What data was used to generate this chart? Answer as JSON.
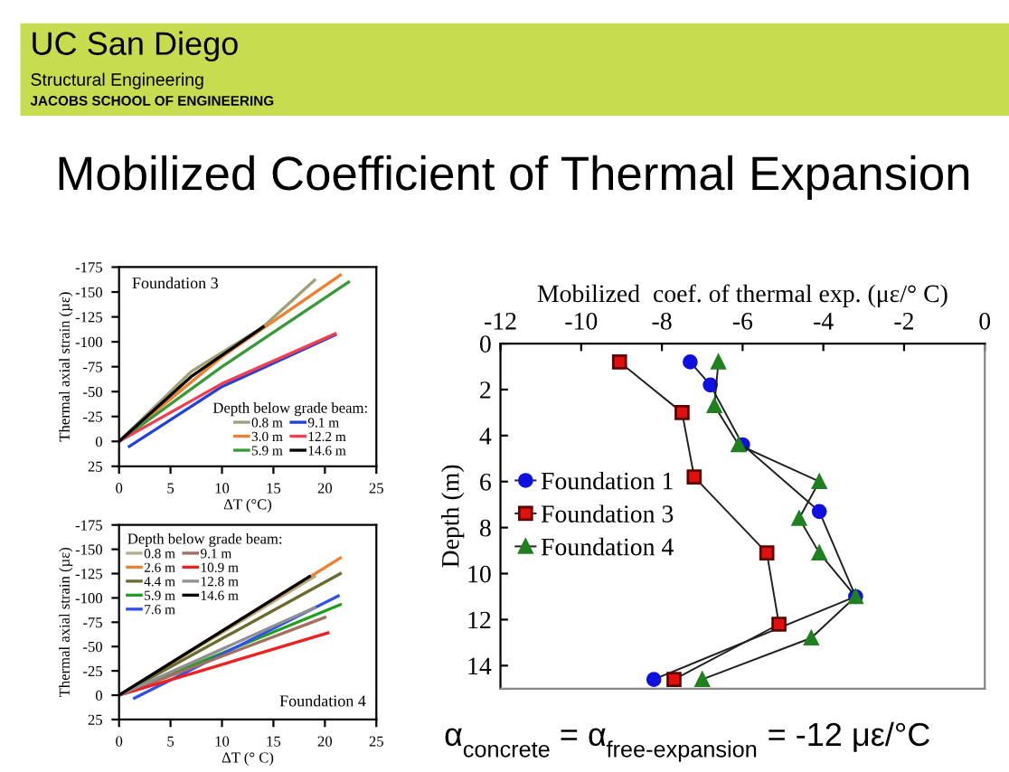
{
  "chart_data": [
    {
      "type": "other",
      "title": "Mobilized Coefficient of Thermal Expansion",
      "annotations": [
        "UC San Diego",
        "Structural Engineering",
        "JACOBS SCHOOL OF ENGINEERING"
      ]
    },
    {
      "type": "line",
      "xlabel": "ΔT (°C)",
      "ylabel": "Thermal axial strain (µε)",
      "legend_title": "Depth below grade beam:",
      "legend": "bottom right",
      "annotations": [
        "Foundation 3"
      ],
      "xlim": [
        0,
        25
      ],
      "xticks": [
        0,
        5,
        10,
        15,
        20,
        25
      ],
      "ylim": [
        25,
        -175
      ],
      "yticks": [
        25,
        0,
        -25,
        -50,
        -75,
        -100,
        -125,
        -150,
        -175
      ],
      "marker": "none",
      "line_style": "solid",
      "grid": false,
      "series": [
        {
          "name": "0.8 m",
          "color": "#a0a078",
          "x": [
            0,
            7,
            14,
            19
          ],
          "values": [
            0,
            -70,
            -115,
            -162
          ]
        },
        {
          "name": "3.0 m",
          "color": "#f08030",
          "x": [
            0,
            10,
            21.5
          ],
          "values": [
            0,
            -85,
            -167
          ]
        },
        {
          "name": "5.9 m",
          "color": "#3a9a3a",
          "x": [
            0,
            10,
            22.3
          ],
          "values": [
            0,
            -75,
            -160
          ]
        },
        {
          "name": "9.1 m",
          "color": "#2040e0",
          "x": [
            1,
            10,
            21
          ],
          "values": [
            5,
            -55,
            -107
          ]
        },
        {
          "name": "12.2 m",
          "color": "#f04050",
          "x": [
            0,
            10,
            21
          ],
          "values": [
            0,
            -58,
            -108
          ]
        },
        {
          "name": "14.6 m",
          "color": "#000000",
          "x": [
            0,
            7,
            14
          ],
          "values": [
            0,
            -65,
            -115
          ]
        }
      ]
    },
    {
      "type": "line",
      "xlabel": "ΔT (° C)",
      "ylabel": "Thermal axial strain (µε)",
      "legend_title": "Depth below grade beam:",
      "legend": "top left",
      "annotations": [
        "Foundation 4"
      ],
      "xlim": [
        0,
        25
      ],
      "xticks": [
        0,
        5,
        10,
        15,
        20,
        25
      ],
      "ylim": [
        25,
        -175
      ],
      "yticks": [
        25,
        0,
        -25,
        -50,
        -75,
        -100,
        -125,
        -150,
        -175
      ],
      "marker": "none",
      "line_style": "solid",
      "grid": false,
      "series": [
        {
          "name": "0.8 m",
          "color": "#b0b090",
          "x": [
            0,
            19
          ],
          "values": [
            0,
            -122
          ]
        },
        {
          "name": "2.6 m",
          "color": "#f08030",
          "x": [
            0,
            21.5
          ],
          "values": [
            0,
            -141
          ]
        },
        {
          "name": "4.4 m",
          "color": "#6b6b30",
          "x": [
            0,
            21.5
          ],
          "values": [
            0,
            -125
          ]
        },
        {
          "name": "5.9 m",
          "color": "#20a020",
          "x": [
            0,
            21.5
          ],
          "values": [
            0,
            -93
          ]
        },
        {
          "name": "7.6 m",
          "color": "#3050f0",
          "x": [
            1.5,
            21.3
          ],
          "values": [
            3,
            -102
          ]
        },
        {
          "name": "9.1 m",
          "color": "#a07060",
          "x": [
            0,
            20
          ],
          "values": [
            0,
            -80
          ]
        },
        {
          "name": "10.9 m",
          "color": "#f02020",
          "x": [
            0,
            20.3
          ],
          "values": [
            0,
            -64
          ]
        },
        {
          "name": "12.8 m",
          "color": "#909090",
          "x": [
            0,
            19
          ],
          "values": [
            0,
            -90
          ]
        },
        {
          "name": "14.6 m",
          "color": "#000000",
          "x": [
            0,
            18.5
          ],
          "values": [
            0,
            -122
          ]
        }
      ]
    },
    {
      "type": "line",
      "xlabel": "Mobilized  coef. of thermal exp. (με/° C)",
      "ylabel": "Depth (m)",
      "legend": "left",
      "xlim": [
        -12,
        0
      ],
      "xticks": [
        -12,
        -10,
        -8,
        -6,
        -4,
        -2,
        0
      ],
      "ylim": [
        15,
        0
      ],
      "yticks": [
        0,
        2,
        4,
        6,
        8,
        10,
        12,
        14
      ],
      "line_style": "solid",
      "grid": false,
      "annotations": [
        "α$_{concrete}$ = α$_{free-expansion}$ = -12 με/°C"
      ],
      "series": [
        {
          "name": "Foundation 1",
          "color": "#1010e0",
          "marker": "circle",
          "x": [
            -7.3,
            -6.8,
            -6.0,
            -4.1,
            -3.2,
            -8.2
          ],
          "values": [
            0.8,
            1.8,
            4.4,
            7.3,
            11.0,
            14.6
          ]
        },
        {
          "name": "Foundation 3",
          "color": "#e01010",
          "marker": "square",
          "x": [
            -9.05,
            -7.5,
            -7.2,
            -5.4,
            -5.1,
            -7.7
          ],
          "values": [
            0.8,
            3.0,
            5.8,
            9.1,
            12.2,
            14.6
          ]
        },
        {
          "name": "Foundation 4",
          "color": "#208020",
          "marker": "triangle",
          "x": [
            -6.6,
            -6.7,
            -6.1,
            -4.1,
            -4.6,
            -4.1,
            -3.2,
            -4.3,
            -7.0
          ],
          "values": [
            0.8,
            2.7,
            4.4,
            6.0,
            7.6,
            9.1,
            11.0,
            12.8,
            14.6
          ]
        }
      ]
    }
  ]
}
